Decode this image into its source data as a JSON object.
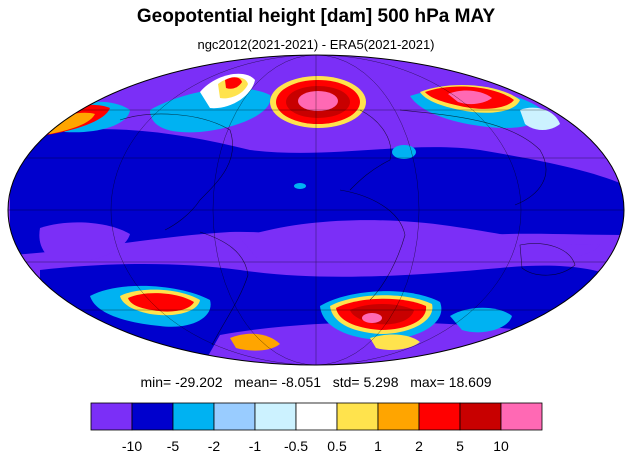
{
  "title": "Geopotential height [dam] 500 hPa MAY",
  "subtitle": "ngc2012(2021-2021) - ERA5(2021-2021)",
  "stats": {
    "min_label": "min=",
    "min": "-29.202",
    "mean_label": "mean=",
    "mean": "-8.051",
    "std_label": "std=",
    "std": "5.298",
    "max_label": "max=",
    "max": "18.609"
  },
  "colorbar": {
    "colors": [
      "#7b2ff7",
      "#0000cd",
      "#00b2f2",
      "#99ccff",
      "#ccf2ff",
      "#ffffff",
      "#ffe34d",
      "#ffa500",
      "#ff0000",
      "#c80000",
      "#ff69b4"
    ],
    "labels": [
      "-10",
      "-5",
      "-2",
      "-1",
      "-0.5",
      "0.5",
      "1",
      "2",
      "5",
      "10"
    ]
  },
  "map": {
    "projection": "mollweide",
    "background_color": "#7b2ff7"
  }
}
